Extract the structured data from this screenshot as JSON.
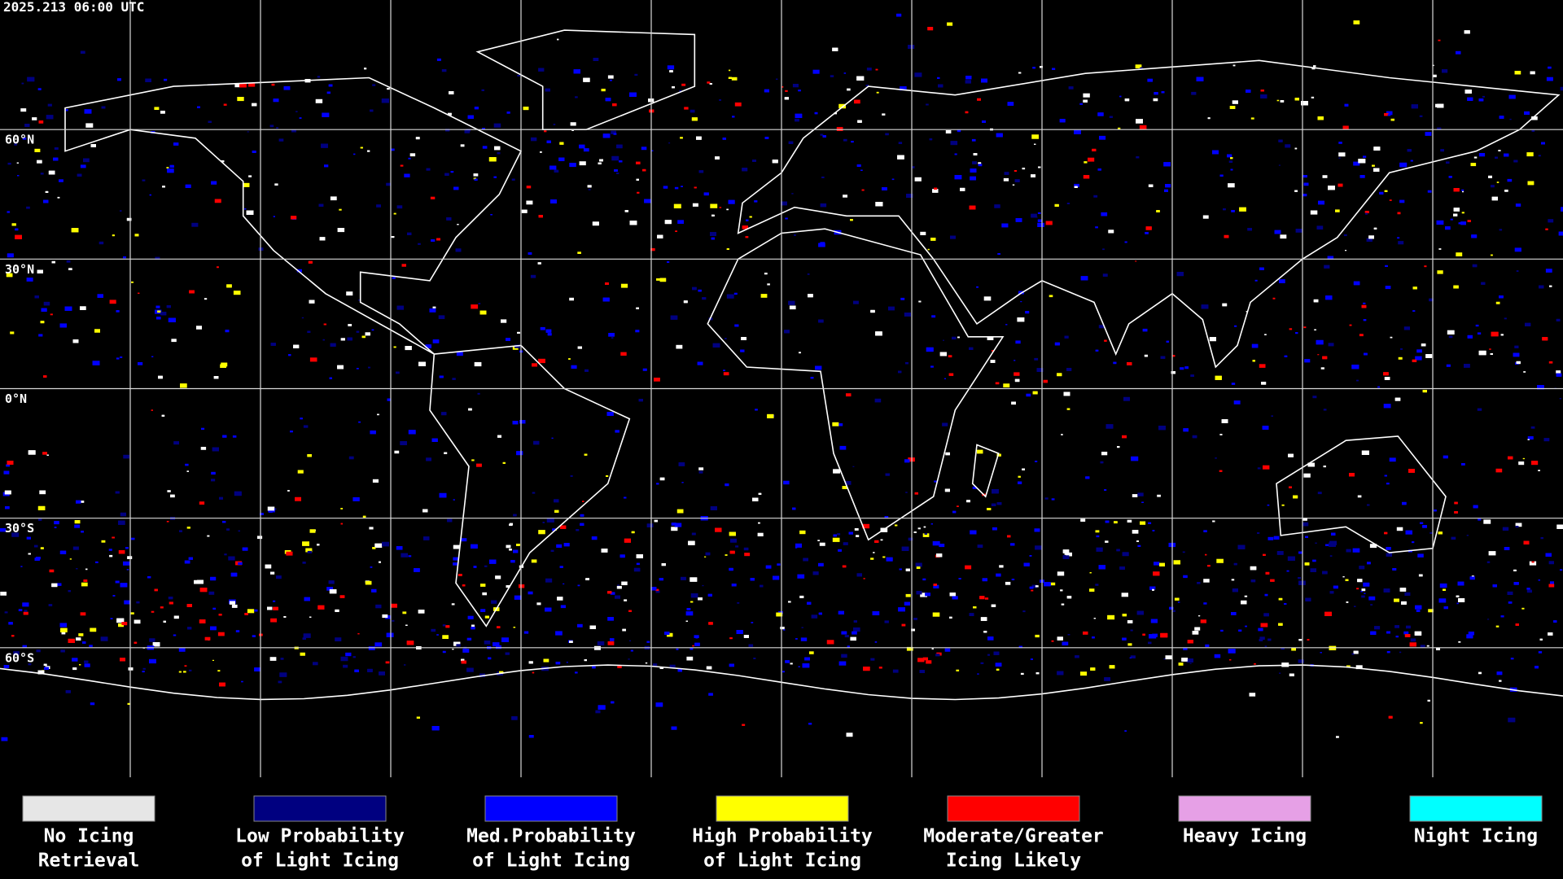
{
  "header": {
    "title": "2025.213 06:00 UTC"
  },
  "map": {
    "lat_labels": [
      "60°N",
      "30°N",
      "0°N",
      "30°S",
      "60°S"
    ]
  },
  "legend": [
    {
      "lines": [
        "No Icing",
        "Retrieval"
      ],
      "color": "#e6e6e6"
    },
    {
      "lines": [
        "Low Probability",
        "of Light Icing"
      ],
      "color": "#000080"
    },
    {
      "lines": [
        "Med.Probability",
        "of Light Icing"
      ],
      "color": "#0000ff"
    },
    {
      "lines": [
        "High Probability",
        "of Light Icing"
      ],
      "color": "#ffff00"
    },
    {
      "lines": [
        "Moderate/Greater",
        "Icing Likely"
      ],
      "color": "#ff0000"
    },
    {
      "lines": [
        "Heavy Icing"
      ],
      "color": "#e6a0e6"
    },
    {
      "lines": [
        "Night Icing"
      ],
      "color": "#00ffff"
    }
  ]
}
